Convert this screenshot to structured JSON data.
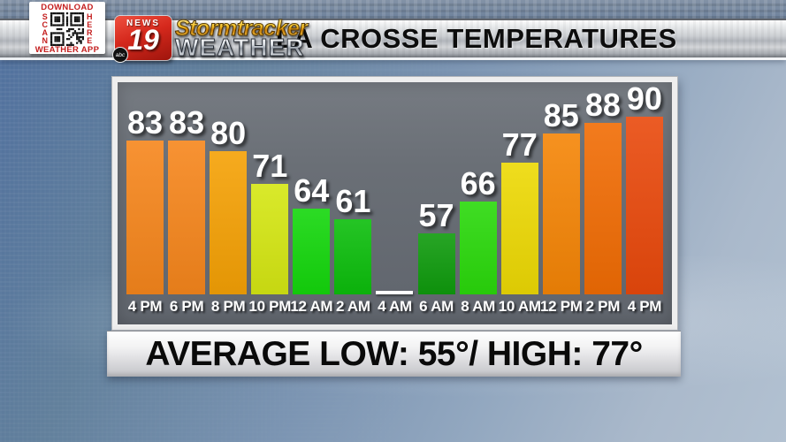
{
  "qr_widget": {
    "top_label": "DOWNLOAD",
    "left_label": "SCAN",
    "right_label": "HERE",
    "bottom_label": "WEATHER APP"
  },
  "logo": {
    "news_label": "NEWS",
    "channel_number": "19",
    "network_label": "abc",
    "brand_line1": "Stormtracker",
    "brand_line2": "WEATHER"
  },
  "header": {
    "title": "LA CROSSE TEMPERATURES"
  },
  "chart_data": {
    "type": "bar",
    "title": "LA CROSSE TEMPERATURES",
    "categories": [
      "4 PM",
      "6 PM",
      "8 PM",
      "10 PM",
      "12 AM",
      "2 AM",
      "4 AM",
      "6 AM",
      "8 AM",
      "10 AM",
      "12 PM",
      "2 PM",
      "4 PM"
    ],
    "values": [
      83,
      83,
      80,
      71,
      64,
      61,
      null,
      57,
      66,
      77,
      85,
      88,
      90
    ],
    "bar_colors": [
      "#F6861C",
      "#F6861C",
      "#F5A105",
      "#D5E713",
      "#14D70C",
      "#0CBE0C",
      null,
      "#0F9B0D",
      "#2AD90B",
      "#EDD904",
      "#F58506",
      "#F16C04",
      "#E9490C"
    ],
    "missing_value_marker": "white dash at baseline for 4 AM",
    "value_labels_shown": true,
    "ylim": [
      40,
      95
    ],
    "grid": false,
    "legend": "none",
    "xlabel": "",
    "ylabel": ""
  },
  "footer": {
    "summary": "AVERAGE LOW: 55°/ HIGH: 77°"
  },
  "palette": {
    "panel_gray": "#6A6F76",
    "sky_blue": "#6A87AD",
    "banner_silver": "#CDD0D4",
    "qr_red": "#C41E1E",
    "logo_red": "#C8281E",
    "label_white": "#FFFFFF",
    "title_black": "#0D0D0D"
  }
}
